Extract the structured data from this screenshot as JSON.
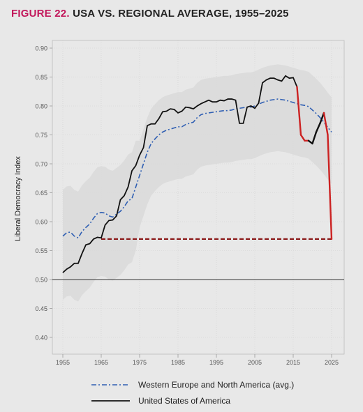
{
  "title": {
    "figure_label": "FIGURE 22.",
    "text": "USA VS. REGIONAL AVERAGE, 1955–2025"
  },
  "colors": {
    "usa": "#111111",
    "usa_decline": "#cc2222",
    "regional": "#2f5fb3",
    "reference": "#8b1a1a",
    "band": "#d9d9d9"
  },
  "chart_data": {
    "type": "line",
    "title": "USA VS. REGIONAL AVERAGE, 1955–2025",
    "xlabel": "",
    "ylabel": "Liberal Democracy Index",
    "xlim": [
      1955,
      2025
    ],
    "ylim": [
      0.4,
      0.9
    ],
    "xticks": [
      1955,
      1965,
      1975,
      1985,
      1995,
      2005,
      2015,
      2025
    ],
    "yticks": [
      "0.40",
      "0.45",
      "0.50",
      "0.55",
      "0.60",
      "0.65",
      "0.70",
      "0.75",
      "0.80",
      "0.85",
      "0.90"
    ],
    "grid": true,
    "reference_line_y": 0.5,
    "series": [
      {
        "name": "Western Europe and North America (avg.)",
        "style": "dash-dot",
        "x": [
          1955,
          1956,
          1957,
          1958,
          1959,
          1960,
          1961,
          1962,
          1963,
          1964,
          1965,
          1966,
          1967,
          1968,
          1969,
          1970,
          1971,
          1972,
          1973,
          1974,
          1975,
          1976,
          1977,
          1978,
          1979,
          1980,
          1981,
          1982,
          1983,
          1984,
          1985,
          1986,
          1987,
          1988,
          1989,
          1990,
          1991,
          1992,
          1993,
          1994,
          1995,
          1996,
          1997,
          1998,
          1999,
          2000,
          2001,
          2002,
          2003,
          2004,
          2005,
          2006,
          2007,
          2008,
          2009,
          2010,
          2011,
          2012,
          2013,
          2014,
          2015,
          2016,
          2017,
          2018,
          2019,
          2020,
          2021,
          2022,
          2023,
          2024,
          2025
        ],
        "values": [
          0.575,
          0.581,
          0.582,
          0.575,
          0.572,
          0.583,
          0.59,
          0.596,
          0.606,
          0.614,
          0.616,
          0.615,
          0.61,
          0.608,
          0.613,
          0.618,
          0.626,
          0.636,
          0.64,
          0.66,
          0.68,
          0.7,
          0.72,
          0.735,
          0.743,
          0.75,
          0.755,
          0.758,
          0.76,
          0.762,
          0.764,
          0.764,
          0.768,
          0.77,
          0.772,
          0.78,
          0.785,
          0.787,
          0.788,
          0.789,
          0.79,
          0.791,
          0.792,
          0.792,
          0.793,
          0.795,
          0.796,
          0.797,
          0.798,
          0.798,
          0.8,
          0.803,
          0.806,
          0.808,
          0.81,
          0.811,
          0.812,
          0.811,
          0.81,
          0.808,
          0.806,
          0.804,
          0.802,
          0.801,
          0.799,
          0.793,
          0.787,
          0.78,
          0.772,
          0.763,
          0.755
        ]
      },
      {
        "name": "United States of America",
        "style": "solid",
        "x": [
          1955,
          1956,
          1957,
          1958,
          1959,
          1960,
          1961,
          1962,
          1963,
          1964,
          1965,
          1966,
          1967,
          1968,
          1969,
          1970,
          1971,
          1972,
          1973,
          1974,
          1975,
          1976,
          1977,
          1978,
          1979,
          1980,
          1981,
          1982,
          1983,
          1984,
          1985,
          1986,
          1987,
          1988,
          1989,
          1990,
          1991,
          1992,
          1993,
          1994,
          1995,
          1996,
          1997,
          1998,
          1999,
          2000,
          2001,
          2002,
          2003,
          2004,
          2005,
          2006,
          2007,
          2008,
          2009,
          2010,
          2011,
          2012,
          2013,
          2014,
          2015,
          2016,
          2017,
          2018,
          2019,
          2020,
          2021,
          2022,
          2023,
          2024,
          2025
        ],
        "values": [
          0.512,
          0.518,
          0.522,
          0.528,
          0.528,
          0.545,
          0.56,
          0.562,
          0.57,
          0.573,
          0.572,
          0.594,
          0.602,
          0.603,
          0.61,
          0.638,
          0.645,
          0.66,
          0.688,
          0.697,
          0.715,
          0.728,
          0.766,
          0.769,
          0.769,
          0.778,
          0.79,
          0.791,
          0.795,
          0.794,
          0.788,
          0.791,
          0.798,
          0.797,
          0.795,
          0.8,
          0.804,
          0.807,
          0.81,
          0.807,
          0.807,
          0.81,
          0.809,
          0.812,
          0.812,
          0.81,
          0.77,
          0.77,
          0.798,
          0.8,
          0.796,
          0.805,
          0.84,
          0.845,
          0.848,
          0.848,
          0.845,
          0.843,
          0.852,
          0.848,
          0.849,
          0.833,
          0.75,
          0.74,
          0.74,
          0.735,
          0.755,
          0.77,
          0.788,
          0.75,
          0.57
        ]
      }
    ],
    "usa_decline_from_year": 2016,
    "reference_dashed_y": 0.57,
    "reference_dashed_x": [
      1965,
      2025
    ],
    "confidence_band_halfwidth": [
      0.05,
      0.05,
      0.05,
      0.05,
      0.05,
      0.05,
      0.05,
      0.05,
      0.05,
      0.05,
      0.05,
      0.05,
      0.05,
      0.05,
      0.05,
      0.05,
      0.05,
      0.05,
      0.05,
      0.05,
      0.05,
      0.05,
      0.05,
      0.05,
      0.05,
      0.05,
      0.05,
      0.05,
      0.05,
      0.05,
      0.05,
      0.05,
      0.05,
      0.05,
      0.05,
      0.05,
      0.05,
      0.05,
      0.05,
      0.05,
      0.05,
      0.05,
      0.05,
      0.05,
      0.05,
      0.05,
      0.05,
      0.05,
      0.05,
      0.05,
      0.05,
      0.05,
      0.05,
      0.05,
      0.05,
      0.05,
      0.05,
      0.05,
      0.05,
      0.05,
      0.05,
      0.05,
      0.05,
      0.05,
      0.05,
      0.05,
      0.05,
      0.05,
      0.05,
      0.05,
      0.05
    ],
    "legend_position": "bottom"
  },
  "legend": [
    {
      "label": "Western Europe and North America (avg.)",
      "style": "dash-dot"
    },
    {
      "label": "United States of America",
      "style": "solid"
    }
  ]
}
